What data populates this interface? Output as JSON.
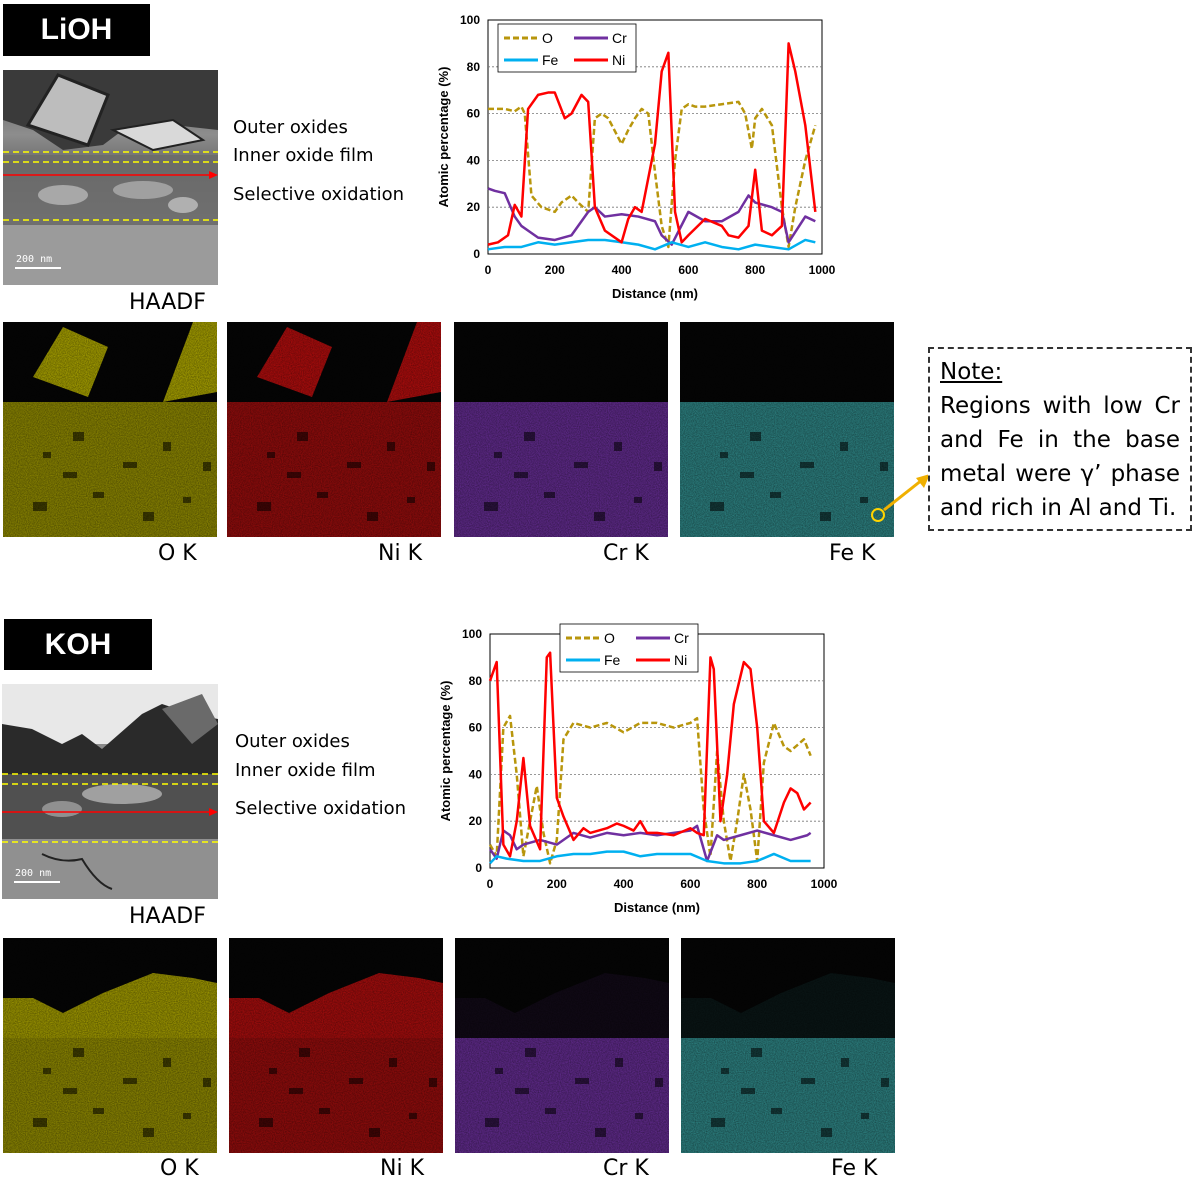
{
  "panels": [
    {
      "condition": "LiOH",
      "layers": [
        "Outer oxides",
        "Inner oxide film",
        "Selective oxidation"
      ],
      "haadf_label": "HAADF",
      "scale_bar": "200 nm",
      "maps": [
        {
          "label": "O K",
          "color": "#c8c000"
        },
        {
          "label": "Ni K",
          "color": "#d11010"
        },
        {
          "label": "Cr K",
          "color": "#8a3cc8"
        },
        {
          "label": "Fe K",
          "color": "#3fb8b8"
        }
      ]
    },
    {
      "condition": "KOH",
      "layers": [
        "Outer oxides",
        "Inner oxide film",
        "Selective oxidation"
      ],
      "haadf_label": "HAADF",
      "scale_bar": "200 nm",
      "maps": [
        {
          "label": "O K",
          "color": "#c8c000"
        },
        {
          "label": "Ni K",
          "color": "#d11010"
        },
        {
          "label": "Cr K",
          "color": "#8a3cc8"
        },
        {
          "label": "Fe K",
          "color": "#3fb8b8"
        }
      ]
    }
  ],
  "note": {
    "title": "Note:",
    "text": "Regions with low Cr and Fe in the base metal were γ’ phase and rich in Al and Ti."
  },
  "colors": {
    "O": "#b8960c",
    "Cr": "#7030a0",
    "Fe": "#00b0f0",
    "Ni": "#ff0000"
  },
  "chart_data": [
    {
      "type": "line",
      "xlabel": "Distance (nm)",
      "ylabel": "Atomic percentage (%)",
      "xlim": [
        0,
        1000
      ],
      "ylim": [
        0,
        100
      ],
      "xticks": [
        0,
        200,
        400,
        600,
        800,
        1000
      ],
      "yticks": [
        0,
        20,
        40,
        60,
        80,
        100
      ],
      "grid": true,
      "legend_position": "top-left",
      "series": [
        {
          "name": "O",
          "style": "dashed",
          "color": "#b8960c",
          "x": [
            0,
            50,
            80,
            100,
            110,
            130,
            160,
            200,
            220,
            250,
            270,
            300,
            320,
            340,
            360,
            400,
            420,
            440,
            460,
            480,
            500,
            520,
            540,
            560,
            580,
            600,
            620,
            650,
            700,
            750,
            770,
            790,
            800,
            820,
            850,
            880,
            900,
            920,
            950,
            980
          ],
          "y": [
            62,
            62,
            61,
            63,
            60,
            25,
            20,
            18,
            22,
            25,
            22,
            18,
            58,
            60,
            58,
            47,
            53,
            58,
            62,
            60,
            35,
            12,
            3,
            40,
            62,
            64,
            63,
            63,
            64,
            65,
            60,
            45,
            58,
            62,
            55,
            20,
            3,
            20,
            40,
            55
          ]
        },
        {
          "name": "Cr",
          "style": "solid",
          "color": "#7030a0",
          "x": [
            0,
            20,
            50,
            80,
            100,
            120,
            150,
            200,
            250,
            300,
            320,
            350,
            400,
            450,
            500,
            520,
            550,
            600,
            650,
            700,
            750,
            780,
            800,
            850,
            880,
            900,
            950,
            980
          ],
          "y": [
            28,
            27,
            26,
            16,
            12,
            10,
            7,
            6,
            8,
            18,
            20,
            16,
            17,
            16,
            14,
            8,
            4,
            18,
            14,
            14,
            18,
            25,
            22,
            20,
            18,
            5,
            16,
            14
          ]
        },
        {
          "name": "Fe",
          "style": "solid",
          "color": "#00b0f0",
          "x": [
            0,
            50,
            100,
            150,
            200,
            250,
            300,
            350,
            400,
            450,
            500,
            550,
            600,
            650,
            700,
            750,
            800,
            850,
            900,
            950,
            980
          ],
          "y": [
            2,
            3,
            3,
            5,
            4,
            5,
            6,
            6,
            5,
            4,
            2,
            5,
            3,
            5,
            3,
            2,
            4,
            3,
            2,
            6,
            5
          ]
        },
        {
          "name": "Ni",
          "style": "solid",
          "color": "#ff0000",
          "x": [
            0,
            30,
            60,
            80,
            100,
            120,
            150,
            180,
            200,
            230,
            250,
            280,
            300,
            320,
            350,
            400,
            420,
            440,
            460,
            500,
            520,
            540,
            560,
            580,
            600,
            650,
            700,
            720,
            750,
            780,
            800,
            820,
            850,
            880,
            900,
            920,
            950,
            980
          ],
          "y": [
            4,
            5,
            8,
            21,
            16,
            62,
            68,
            69,
            69,
            58,
            60,
            68,
            65,
            20,
            10,
            5,
            15,
            20,
            18,
            47,
            78,
            86,
            18,
            5,
            8,
            15,
            12,
            8,
            7,
            12,
            36,
            10,
            8,
            12,
            90,
            78,
            55,
            18
          ]
        }
      ]
    },
    {
      "type": "line",
      "xlabel": "Distance (nm)",
      "ylabel": "Atomic percentage (%)",
      "xlim": [
        0,
        1000
      ],
      "ylim": [
        0,
        100
      ],
      "xticks": [
        0,
        200,
        400,
        600,
        800,
        1000
      ],
      "yticks": [
        0,
        20,
        40,
        60,
        80,
        100
      ],
      "grid": true,
      "legend_position": "top",
      "series": [
        {
          "name": "O",
          "style": "dashed",
          "color": "#b8960c",
          "x": [
            0,
            20,
            40,
            60,
            80,
            100,
            120,
            140,
            160,
            180,
            200,
            220,
            250,
            300,
            350,
            400,
            450,
            500,
            550,
            600,
            620,
            640,
            660,
            680,
            700,
            720,
            740,
            760,
            780,
            800,
            820,
            850,
            880,
            900,
            940,
            960
          ],
          "y": [
            10,
            5,
            60,
            65,
            40,
            5,
            20,
            35,
            15,
            2,
            12,
            55,
            62,
            60,
            62,
            58,
            62,
            62,
            60,
            62,
            64,
            25,
            5,
            50,
            20,
            3,
            20,
            40,
            25,
            3,
            45,
            62,
            52,
            50,
            55,
            48
          ]
        },
        {
          "name": "Cr",
          "style": "solid",
          "color": "#7030a0",
          "x": [
            0,
            20,
            40,
            60,
            80,
            100,
            150,
            200,
            250,
            300,
            350,
            400,
            450,
            500,
            550,
            600,
            620,
            650,
            680,
            700,
            750,
            800,
            850,
            900,
            950,
            960
          ],
          "y": [
            8,
            4,
            16,
            14,
            8,
            10,
            12,
            10,
            15,
            13,
            15,
            14,
            15,
            14,
            15,
            16,
            18,
            3,
            14,
            12,
            14,
            16,
            14,
            12,
            14,
            15
          ]
        },
        {
          "name": "Fe",
          "style": "solid",
          "color": "#00b0f0",
          "x": [
            0,
            20,
            50,
            100,
            150,
            200,
            250,
            300,
            350,
            400,
            450,
            500,
            550,
            600,
            650,
            700,
            750,
            800,
            850,
            900,
            950,
            960
          ],
          "y": [
            2,
            5,
            4,
            3,
            3,
            5,
            6,
            6,
            7,
            7,
            5,
            6,
            6,
            6,
            3,
            2,
            2,
            3,
            6,
            3,
            3,
            3
          ]
        },
        {
          "name": "Ni",
          "style": "solid",
          "color": "#ff0000",
          "x": [
            0,
            20,
            40,
            60,
            80,
            100,
            120,
            150,
            170,
            180,
            200,
            220,
            250,
            280,
            300,
            350,
            380,
            400,
            430,
            450,
            470,
            500,
            550,
            600,
            620,
            640,
            660,
            670,
            690,
            710,
            730,
            760,
            780,
            800,
            820,
            850,
            880,
            900,
            920,
            940,
            960
          ],
          "y": [
            80,
            88,
            10,
            5,
            20,
            47,
            18,
            8,
            90,
            92,
            30,
            22,
            12,
            17,
            15,
            17,
            19,
            18,
            16,
            20,
            15,
            15,
            14,
            17,
            15,
            14,
            90,
            85,
            20,
            40,
            70,
            88,
            85,
            60,
            20,
            15,
            28,
            34,
            32,
            25,
            28
          ]
        }
      ]
    }
  ]
}
